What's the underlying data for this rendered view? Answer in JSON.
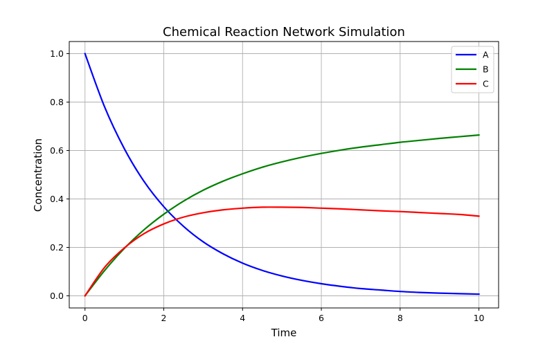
{
  "chart_data": {
    "type": "line",
    "title": "Chemical Reaction Network Simulation",
    "xlabel": "Time",
    "ylabel": "Concentration",
    "xlim": [
      -0.4,
      10.5
    ],
    "ylim": [
      -0.05,
      1.05
    ],
    "xticks": [
      "0",
      "2",
      "4",
      "6",
      "8",
      "10"
    ],
    "yticks": [
      "0.0",
      "0.2",
      "0.4",
      "0.6",
      "0.8",
      "1.0"
    ],
    "grid": true,
    "legend_position": "top-right",
    "x": [
      0,
      0.5,
      1,
      1.5,
      2,
      2.5,
      3,
      3.5,
      4,
      4.5,
      5,
      5.5,
      6,
      6.5,
      7,
      7.5,
      8,
      8.5,
      9,
      9.5,
      10
    ],
    "series": [
      {
        "name": "A",
        "color": "#0000ff",
        "values": [
          1.0,
          0.779,
          0.607,
          0.472,
          0.368,
          0.287,
          0.223,
          0.174,
          0.135,
          0.105,
          0.082,
          0.064,
          0.05,
          0.039,
          0.03,
          0.024,
          0.018,
          0.014,
          0.011,
          0.009,
          0.007
        ]
      },
      {
        "name": "B",
        "color": "#008000",
        "values": [
          0.0,
          0.105,
          0.196,
          0.273,
          0.337,
          0.391,
          0.436,
          0.473,
          0.504,
          0.531,
          0.553,
          0.572,
          0.588,
          0.602,
          0.614,
          0.624,
          0.634,
          0.642,
          0.65,
          0.657,
          0.664
        ]
      },
      {
        "name": "C",
        "color": "#ff0000",
        "values": [
          0.0,
          0.118,
          0.198,
          0.257,
          0.297,
          0.325,
          0.343,
          0.355,
          0.362,
          0.366,
          0.366,
          0.365,
          0.362,
          0.359,
          0.355,
          0.351,
          0.348,
          0.344,
          0.34,
          0.336,
          0.329
        ]
      }
    ]
  }
}
